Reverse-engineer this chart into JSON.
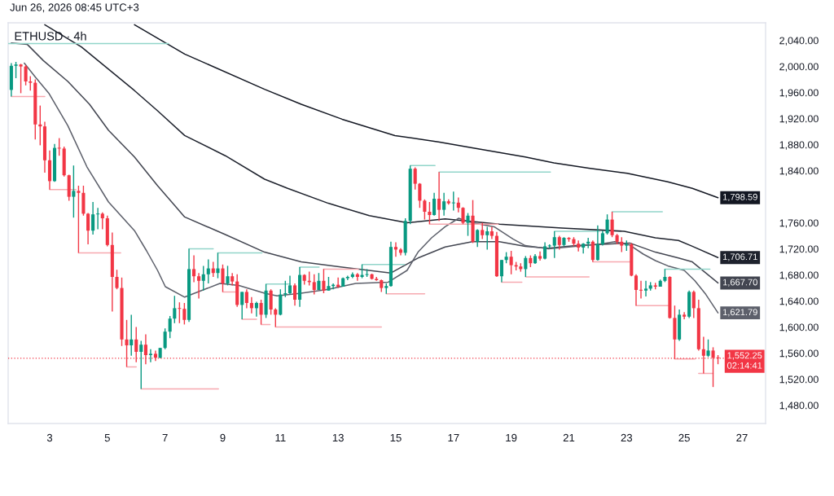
{
  "chart_data": {
    "type": "candlestick",
    "title": "ETHUSD · 4h",
    "x": [
      1.67,
      1.83,
      2.0,
      2.17,
      2.33,
      2.5,
      2.67,
      2.83,
      3.0,
      3.17,
      3.33,
      3.5,
      3.67,
      3.83,
      4.0,
      4.17,
      4.33,
      4.5,
      4.67,
      4.83,
      5.0,
      5.17,
      5.33,
      5.5,
      5.67,
      5.83,
      6.0,
      6.17,
      6.33,
      6.5,
      6.67,
      6.83,
      7.0,
      7.17,
      7.33,
      7.5,
      7.67,
      7.83,
      8.0,
      8.17,
      8.33,
      8.5,
      8.67,
      8.83,
      9.0,
      9.17,
      9.33,
      9.5,
      9.67,
      9.83,
      10.0,
      10.17,
      10.33,
      10.5,
      10.67,
      10.83,
      11.0,
      11.17,
      11.33,
      11.5,
      11.67,
      11.83,
      12.0,
      12.17,
      12.33,
      12.5,
      12.67,
      12.83,
      13.0,
      13.17,
      13.33,
      13.5,
      13.67,
      13.83,
      14.0,
      14.17,
      14.33,
      14.5,
      14.67,
      14.83,
      15.0,
      15.17,
      15.33,
      15.5,
      15.67,
      15.83,
      16.0,
      16.17,
      16.33,
      16.5,
      16.67,
      16.83,
      17.0,
      17.17,
      17.33,
      17.5,
      17.67,
      17.83,
      18.0,
      18.17,
      18.33,
      18.5,
      18.67,
      18.83,
      19.0,
      19.17,
      19.33,
      19.5,
      19.67,
      19.83,
      20.0,
      20.17,
      20.33,
      20.5,
      20.67,
      20.83,
      21.0,
      21.17,
      21.33,
      21.5,
      21.67,
      21.83,
      22.0,
      22.17,
      22.33,
      22.5,
      22.67,
      22.83,
      23.0,
      23.17,
      23.33,
      23.5,
      23.67,
      23.83,
      24.0,
      24.17,
      24.33,
      24.5,
      24.67,
      24.83,
      25.0,
      25.17,
      25.33,
      25.5,
      25.67,
      25.83,
      26.0,
      26.17
    ],
    "ohlc": [
      [
        1964,
        2005,
        1954,
        2001
      ],
      [
        2001,
        2007,
        1982,
        2003
      ],
      [
        2003,
        2004,
        1959,
        2000
      ],
      [
        2000,
        2002,
        1971,
        1977
      ],
      [
        1977,
        1985,
        1963,
        1975
      ],
      [
        1975,
        1980,
        1888,
        1911
      ],
      [
        1911,
        1940,
        1879,
        1908
      ],
      [
        1908,
        1915,
        1837,
        1856
      ],
      [
        1856,
        1871,
        1811,
        1824
      ],
      [
        1824,
        1881,
        1823,
        1875
      ],
      [
        1875,
        1890,
        1863,
        1874
      ],
      [
        1874,
        1877,
        1831,
        1833
      ],
      [
        1833,
        1834,
        1794,
        1800
      ],
      [
        1800,
        1848,
        1768,
        1809
      ],
      [
        1809,
        1817,
        1714,
        1806
      ],
      [
        1806,
        1817,
        1771,
        1774
      ],
      [
        1774,
        1775,
        1727,
        1748
      ],
      [
        1748,
        1792,
        1742,
        1773
      ],
      [
        1773,
        1783,
        1750,
        1774
      ],
      [
        1774,
        1776,
        1750,
        1767
      ],
      [
        1767,
        1771,
        1724,
        1726
      ],
      [
        1726,
        1745,
        1624,
        1677
      ],
      [
        1677,
        1688,
        1658,
        1660
      ],
      [
        1660,
        1676,
        1571,
        1581
      ],
      [
        1581,
        1611,
        1539,
        1572
      ],
      [
        1572,
        1619,
        1556,
        1581
      ],
      [
        1581,
        1600,
        1546,
        1562
      ],
      [
        1562,
        1579,
        1505,
        1573
      ],
      [
        1573,
        1589,
        1543,
        1557
      ],
      [
        1557,
        1566,
        1546,
        1559
      ],
      [
        1559,
        1564,
        1548,
        1553
      ],
      [
        1553,
        1568,
        1552,
        1568
      ],
      [
        1568,
        1598,
        1566,
        1593
      ],
      [
        1593,
        1617,
        1583,
        1613
      ],
      [
        1613,
        1648,
        1606,
        1629
      ],
      [
        1629,
        1638,
        1606,
        1628
      ],
      [
        1628,
        1637,
        1604,
        1611
      ],
      [
        1611,
        1720,
        1608,
        1689
      ],
      [
        1689,
        1710,
        1669,
        1678
      ],
      [
        1678,
        1683,
        1644,
        1671
      ],
      [
        1671,
        1694,
        1656,
        1681
      ],
      [
        1681,
        1704,
        1667,
        1690
      ],
      [
        1690,
        1700,
        1677,
        1683
      ],
      [
        1683,
        1714,
        1675,
        1690
      ],
      [
        1690,
        1696,
        1654,
        1667
      ],
      [
        1667,
        1694,
        1664,
        1678
      ],
      [
        1678,
        1683,
        1664,
        1670
      ],
      [
        1670,
        1681,
        1631,
        1634
      ],
      [
        1634,
        1654,
        1612,
        1654
      ],
      [
        1654,
        1658,
        1629,
        1637
      ],
      [
        1637,
        1646,
        1621,
        1629
      ],
      [
        1629,
        1639,
        1616,
        1637
      ],
      [
        1637,
        1642,
        1604,
        1619
      ],
      [
        1619,
        1666,
        1614,
        1656
      ],
      [
        1656,
        1658,
        1619,
        1627
      ],
      [
        1627,
        1629,
        1600,
        1619
      ],
      [
        1619,
        1658,
        1618,
        1650
      ],
      [
        1650,
        1671,
        1646,
        1652
      ],
      [
        1652,
        1679,
        1650,
        1664
      ],
      [
        1664,
        1667,
        1633,
        1642
      ],
      [
        1642,
        1692,
        1631,
        1680
      ],
      [
        1680,
        1681,
        1665,
        1671
      ],
      [
        1671,
        1685,
        1664,
        1669
      ],
      [
        1669,
        1681,
        1650,
        1657
      ],
      [
        1657,
        1683,
        1657,
        1671
      ],
      [
        1671,
        1689,
        1652,
        1656
      ],
      [
        1656,
        1677,
        1656,
        1663
      ],
      [
        1663,
        1667,
        1658,
        1665
      ],
      [
        1665,
        1676,
        1660,
        1662
      ],
      [
        1662,
        1676,
        1662,
        1675
      ],
      [
        1675,
        1679,
        1672,
        1677
      ],
      [
        1677,
        1684,
        1675,
        1681
      ],
      [
        1681,
        1683,
        1671,
        1677
      ],
      [
        1677,
        1696,
        1675,
        1680
      ],
      [
        1680,
        1689,
        1677,
        1681
      ],
      [
        1681,
        1682,
        1673,
        1674
      ],
      [
        1674,
        1677,
        1671,
        1672
      ],
      [
        1672,
        1673,
        1654,
        1660
      ],
      [
        1660,
        1667,
        1651,
        1663
      ],
      [
        1663,
        1731,
        1662,
        1723
      ],
      [
        1723,
        1730,
        1708,
        1719
      ],
      [
        1719,
        1721,
        1710,
        1714
      ],
      [
        1714,
        1767,
        1710,
        1763
      ],
      [
        1763,
        1848,
        1758,
        1843
      ],
      [
        1843,
        1845,
        1811,
        1820
      ],
      [
        1820,
        1821,
        1783,
        1794
      ],
      [
        1794,
        1796,
        1765,
        1777
      ],
      [
        1777,
        1792,
        1758,
        1772
      ],
      [
        1772,
        1806,
        1771,
        1797
      ],
      [
        1797,
        1838,
        1763,
        1780
      ],
      [
        1780,
        1806,
        1771,
        1793
      ],
      [
        1793,
        1796,
        1788,
        1790
      ],
      [
        1790,
        1808,
        1779,
        1791
      ],
      [
        1791,
        1799,
        1776,
        1783
      ],
      [
        1783,
        1784,
        1758,
        1760
      ],
      [
        1760,
        1775,
        1740,
        1771
      ],
      [
        1771,
        1795,
        1729,
        1731
      ],
      [
        1731,
        1750,
        1723,
        1749
      ],
      [
        1749,
        1760,
        1735,
        1741
      ],
      [
        1741,
        1754,
        1719,
        1747
      ],
      [
        1747,
        1754,
        1735,
        1740
      ],
      [
        1740,
        1746,
        1677,
        1678
      ],
      [
        1678,
        1703,
        1669,
        1703
      ],
      [
        1703,
        1715,
        1698,
        1708
      ],
      [
        1708,
        1717,
        1681,
        1695
      ],
      [
        1695,
        1700,
        1687,
        1693
      ],
      [
        1693,
        1698,
        1685,
        1689
      ],
      [
        1689,
        1709,
        1677,
        1706
      ],
      [
        1706,
        1710,
        1692,
        1698
      ],
      [
        1698,
        1712,
        1697,
        1709
      ],
      [
        1709,
        1716,
        1702,
        1705
      ],
      [
        1705,
        1730,
        1704,
        1724
      ],
      [
        1724,
        1727,
        1721,
        1725
      ],
      [
        1725,
        1747,
        1706,
        1738
      ],
      [
        1738,
        1740,
        1719,
        1726
      ],
      [
        1726,
        1738,
        1724,
        1737
      ],
      [
        1737,
        1738,
        1731,
        1735
      ],
      [
        1735,
        1738,
        1724,
        1728
      ],
      [
        1728,
        1733,
        1716,
        1722
      ],
      [
        1722,
        1729,
        1713,
        1728
      ],
      [
        1728,
        1737,
        1721,
        1731
      ],
      [
        1731,
        1733,
        1700,
        1703
      ],
      [
        1703,
        1756,
        1702,
        1727
      ],
      [
        1727,
        1748,
        1725,
        1744
      ],
      [
        1744,
        1773,
        1742,
        1765
      ],
      [
        1765,
        1777,
        1738,
        1741
      ],
      [
        1741,
        1743,
        1727,
        1731
      ],
      [
        1731,
        1738,
        1715,
        1725
      ],
      [
        1725,
        1733,
        1717,
        1727
      ],
      [
        1727,
        1729,
        1678,
        1679
      ],
      [
        1679,
        1681,
        1633,
        1657
      ],
      [
        1657,
        1671,
        1644,
        1656
      ],
      [
        1656,
        1671,
        1647,
        1659
      ],
      [
        1659,
        1669,
        1656,
        1664
      ],
      [
        1664,
        1668,
        1658,
        1662
      ],
      [
        1662,
        1673,
        1662,
        1671
      ],
      [
        1671,
        1689,
        1669,
        1677
      ],
      [
        1677,
        1678,
        1613,
        1614
      ],
      [
        1614,
        1633,
        1551,
        1581
      ],
      [
        1581,
        1627,
        1579,
        1619
      ],
      [
        1619,
        1623,
        1612,
        1616
      ],
      [
        1616,
        1656,
        1614,
        1654
      ],
      [
        1654,
        1656,
        1614,
        1629
      ],
      [
        1629,
        1642,
        1564,
        1566
      ],
      [
        1566,
        1585,
        1529,
        1556
      ],
      [
        1556,
        1581,
        1554,
        1564
      ],
      [
        1564,
        1569,
        1508,
        1553
      ],
      [
        1553,
        1557,
        1543,
        1552.25
      ]
    ],
    "colors": [
      "#089981",
      "#089981",
      "#f23645",
      "#f23645",
      "#f23645",
      "#f23645",
      "#f23645",
      "#f23645",
      "#f23645",
      "#089981",
      "#f23645",
      "#f23645",
      "#f23645",
      "#089981",
      "#f23645",
      "#f23645",
      "#f23645",
      "#089981",
      "#089981",
      "#f23645",
      "#f23645",
      "#f23645",
      "#f23645",
      "#f23645",
      "#f23645",
      "#089981",
      "#f23645",
      "#089981",
      "#f23645",
      "#089981",
      "#f23645",
      "#089981",
      "#089981",
      "#089981",
      "#089981",
      "#f23645",
      "#f23645",
      "#089981",
      "#f23645",
      "#f23645",
      "#089981",
      "#089981",
      "#f23645",
      "#089981",
      "#f23645",
      "#089981",
      "#f23645",
      "#f23645",
      "#089981",
      "#f23645",
      "#f23645",
      "#089981",
      "#f23645",
      "#089981",
      "#f23645",
      "#f23645",
      "#089981",
      "#089981",
      "#089981",
      "#f23645",
      "#089981",
      "#f23645",
      "#f23645",
      "#f23645",
      "#089981",
      "#f23645",
      "#089981",
      "#089981",
      "#f23645",
      "#089981",
      "#089981",
      "#089981",
      "#f23645",
      "#089981",
      "#089981",
      "#f23645",
      "#f23645",
      "#f23645",
      "#089981",
      "#089981",
      "#f23645",
      "#f23645",
      "#089981",
      "#089981",
      "#f23645",
      "#f23645",
      "#f23645",
      "#f23645",
      "#089981",
      "#f23645",
      "#089981",
      "#f23645",
      "#089981",
      "#f23645",
      "#f23645",
      "#089981",
      "#f23645",
      "#089981",
      "#f23645",
      "#089981",
      "#f23645",
      "#f23645",
      "#089981",
      "#089981",
      "#f23645",
      "#f23645",
      "#f23645",
      "#089981",
      "#f23645",
      "#089981",
      "#f23645",
      "#089981",
      "#089981",
      "#089981",
      "#f23645",
      "#089981",
      "#f23645",
      "#f23645",
      "#f23645",
      "#089981",
      "#089981",
      "#f23645",
      "#089981",
      "#089981",
      "#089981",
      "#f23645",
      "#f23645",
      "#f23645",
      "#089981",
      "#f23645",
      "#f23645",
      "#f23645",
      "#089981",
      "#089981",
      "#f23645",
      "#089981",
      "#089981",
      "#f23645",
      "#f23645",
      "#089981",
      "#f23645",
      "#089981",
      "#f23645",
      "#f23645",
      "#f23645",
      "#089981",
      "#f23645",
      "#f23645"
    ],
    "series": [
      {
        "type": "line",
        "color": "#131722",
        "x": [
          5.94,
          7.68,
          10.45,
          11.72,
          13.14,
          14.97,
          16.52,
          17.65,
          19.49,
          20.48,
          21.69,
          23.02,
          24.43,
          25.28,
          26.17
        ],
        "values": [
          2064,
          2019,
          1965,
          1942,
          1919,
          1894,
          1884,
          1875,
          1861,
          1852,
          1844,
          1836,
          1823,
          1813,
          1798.59
        ]
      },
      {
        "type": "line",
        "color": "#1e222d",
        "x": [
          2.83,
          4.1,
          5.94,
          6.74,
          7.68,
          9.09,
          10.45,
          11.25,
          12.66,
          14.08,
          15.39,
          16.71,
          18.59,
          20.76,
          22.92,
          24.0,
          24.8,
          25.28,
          26.17
        ],
        "values": [
          2064,
          2030,
          1963,
          1932,
          1894,
          1863,
          1827,
          1813,
          1790,
          1771,
          1760,
          1766,
          1758,
          1752,
          1747,
          1737,
          1733,
          1724,
          1706.71
        ]
      },
      {
        "type": "line",
        "color": "#434651",
        "x": [
          1.67,
          2.22,
          2.78,
          3.63,
          4.38,
          5.04,
          5.94,
          6.74,
          7.68,
          9.09,
          10.45,
          11.72,
          13.14,
          14.83,
          15.77,
          16.71,
          17.65,
          18.59,
          19.49,
          20.28,
          21.23,
          22.17,
          23.11,
          24.0,
          24.8,
          25.28,
          26.17
        ],
        "values": [
          2036,
          2034,
          2009,
          1977,
          1942,
          1902,
          1861,
          1817,
          1769,
          1742,
          1715,
          1700,
          1692,
          1683,
          1706,
          1723,
          1731,
          1731,
          1724,
          1721,
          1725,
          1727,
          1729,
          1715,
          1706,
          1700,
          1667.7
        ]
      },
      {
        "type": "line",
        "color": "#5d606b",
        "x": [
          2.12,
          2.5,
          2.97,
          3.63,
          4.29,
          5.04,
          5.94,
          6.36,
          6.74,
          7.01,
          7.68,
          8.9,
          9.56,
          10.45,
          10.88,
          11.72,
          12.66,
          13.61,
          14.74,
          15.39,
          15.77,
          16.24,
          16.71,
          17.18,
          17.65,
          18.41,
          19.07,
          19.49,
          20.29,
          21.23,
          22.17,
          22.59,
          23.11,
          23.58,
          24.0,
          24.43,
          25.0,
          25.37,
          25.75,
          26.17
        ],
        "values": [
          2005,
          1984,
          1959,
          1909,
          1846,
          1792,
          1748,
          1717,
          1687,
          1662,
          1646,
          1667,
          1664,
          1652,
          1648,
          1652,
          1658,
          1667,
          1669,
          1687,
          1715,
          1737,
          1754,
          1767,
          1760,
          1754,
          1735,
          1725,
          1720,
          1724,
          1728,
          1731,
          1726,
          1712,
          1702,
          1694,
          1687,
          1671,
          1650,
          1621.79
        ]
      },
      {
        "type": "line",
        "color": "#92d5ca",
        "x": [
          1.56,
          7.12
        ],
        "values": [
          2035,
          2035
        ]
      },
      {
        "type": "line",
        "color": "#92d5ca",
        "x": [
          7.83,
          8.67
        ],
        "values": [
          1720,
          1720
        ]
      },
      {
        "type": "line",
        "color": "#92d5ca",
        "x": [
          8.83,
          10.36
        ],
        "values": [
          1714,
          1714
        ]
      },
      {
        "type": "line",
        "color": "#92d5ca",
        "x": [
          10.5,
          11.33
        ],
        "values": [
          1666,
          1666
        ]
      },
      {
        "type": "line",
        "color": "#92d5ca",
        "x": [
          11.67,
          12.34
        ],
        "values": [
          1692,
          1692
        ]
      },
      {
        "type": "line",
        "color": "#f7a9b0",
        "x": [
          12.5,
          13.7
        ],
        "values": [
          1689,
          1689
        ]
      },
      {
        "type": "line",
        "color": "#92d5ca",
        "x": [
          13.83,
          15.3
        ],
        "values": [
          1696,
          1696
        ]
      },
      {
        "type": "line",
        "color": "#92d5ca",
        "x": [
          15.5,
          16.36
        ],
        "values": [
          1848,
          1848
        ]
      },
      {
        "type": "line",
        "color": "#92d5ca",
        "x": [
          16.5,
          20.36
        ],
        "values": [
          1838,
          1838
        ]
      },
      {
        "type": "line",
        "color": "#92d5ca",
        "x": [
          20.5,
          22.08
        ],
        "values": [
          1747,
          1747
        ]
      },
      {
        "type": "line",
        "color": "#92d5ca",
        "x": [
          22.5,
          24.24
        ],
        "values": [
          1777,
          1777
        ]
      },
      {
        "type": "line",
        "color": "#92d5ca",
        "x": [
          24.33,
          25.89
        ],
        "values": [
          1689,
          1689
        ]
      },
      {
        "type": "line",
        "color": "#f7a9b0",
        "x": [
          1.67,
          2.83
        ],
        "values": [
          1954,
          1954
        ]
      },
      {
        "type": "line",
        "color": "#f7a9b0",
        "x": [
          3.0,
          3.91
        ],
        "values": [
          1811,
          1811
        ]
      },
      {
        "type": "line",
        "color": "#f7a9b0",
        "x": [
          4.0,
          5.46
        ],
        "values": [
          1714,
          1714
        ]
      },
      {
        "type": "line",
        "color": "#f7a9b0",
        "x": [
          5.67,
          6.0
        ],
        "values": [
          1539,
          1539
        ]
      },
      {
        "type": "line",
        "color": "#f7a9b0",
        "x": [
          6.17,
          8.85
        ],
        "values": [
          1505,
          1505
        ]
      },
      {
        "type": "line",
        "color": "#f7a9b0",
        "x": [
          9.0,
          9.51
        ],
        "values": [
          1654,
          1654
        ]
      },
      {
        "type": "line",
        "color": "#f7a9b0",
        "x": [
          9.67,
          10.17
        ],
        "values": [
          1612,
          1612
        ]
      },
      {
        "type": "line",
        "color": "#f7a9b0",
        "x": [
          10.33,
          10.64
        ],
        "values": [
          1604,
          1604
        ]
      },
      {
        "type": "line",
        "color": "#f7a9b0",
        "x": [
          10.83,
          14.5
        ],
        "values": [
          1600,
          1600
        ]
      },
      {
        "type": "line",
        "color": "#f7a9b0",
        "x": [
          14.67,
          16.0
        ],
        "values": [
          1651,
          1651
        ]
      },
      {
        "type": "line",
        "color": "#f7a9b0",
        "x": [
          16.17,
          18.55
        ],
        "values": [
          1758,
          1758
        ]
      },
      {
        "type": "line",
        "color": "#f7a9b0",
        "x": [
          18.67,
          19.37
        ],
        "values": [
          1669,
          1669
        ]
      },
      {
        "type": "line",
        "color": "#f7a9b0",
        "x": [
          19.5,
          21.7
        ],
        "values": [
          1677,
          1677
        ]
      },
      {
        "type": "line",
        "color": "#f7a9b0",
        "x": [
          21.83,
          23.16
        ],
        "values": [
          1700,
          1700
        ]
      },
      {
        "type": "line",
        "color": "#f7a9b0",
        "x": [
          23.33,
          24.48
        ],
        "values": [
          1633,
          1633
        ]
      },
      {
        "type": "line",
        "color": "#f7a9b0",
        "x": [
          24.67,
          25.37
        ],
        "values": [
          1551,
          1551
        ]
      },
      {
        "type": "line",
        "color": "#f7a9b0",
        "x": [
          25.5,
          26.0
        ],
        "values": [
          1529,
          1529
        ]
      }
    ],
    "xlim": [
      1.56,
      27.82
    ],
    "xticks": [
      3,
      5,
      7,
      9,
      11,
      13,
      15,
      17,
      19,
      21,
      23,
      25,
      27
    ],
    "ylim": [
      1452,
      2067
    ],
    "yticks": [
      {
        "value": 1480,
        "label": "1,480.00"
      },
      {
        "value": 1520,
        "label": "1,520.00"
      },
      {
        "value": 1560,
        "label": "1,560.00"
      },
      {
        "value": 1600,
        "label": "1,600.00"
      },
      {
        "value": 1640,
        "label": "1,640.00"
      },
      {
        "value": 1680,
        "label": "1,680.00"
      },
      {
        "value": 1720,
        "label": "1,720.00"
      },
      {
        "value": 1760,
        "label": "1,760.00"
      },
      {
        "value": 1840,
        "label": "1,840.00"
      },
      {
        "value": 1880,
        "label": "1,880.00"
      },
      {
        "value": 1920,
        "label": "1,920.00"
      },
      {
        "value": 1960,
        "label": "1,960.00"
      },
      {
        "value": 2000,
        "label": "2,000.00"
      },
      {
        "value": 2040,
        "label": "2,040.00"
      }
    ],
    "ref_lines": [
      {
        "axis": "y",
        "value": 1552.25,
        "label": "1,552.25\n02:14:41",
        "color": "#f23645",
        "line_style": "dotted"
      }
    ],
    "annotations": [
      "Jun 26, 2026 08:45 UTC+3",
      "1,798.59",
      "1,706.71",
      "1,667.70",
      "1,621.79"
    ]
  }
}
